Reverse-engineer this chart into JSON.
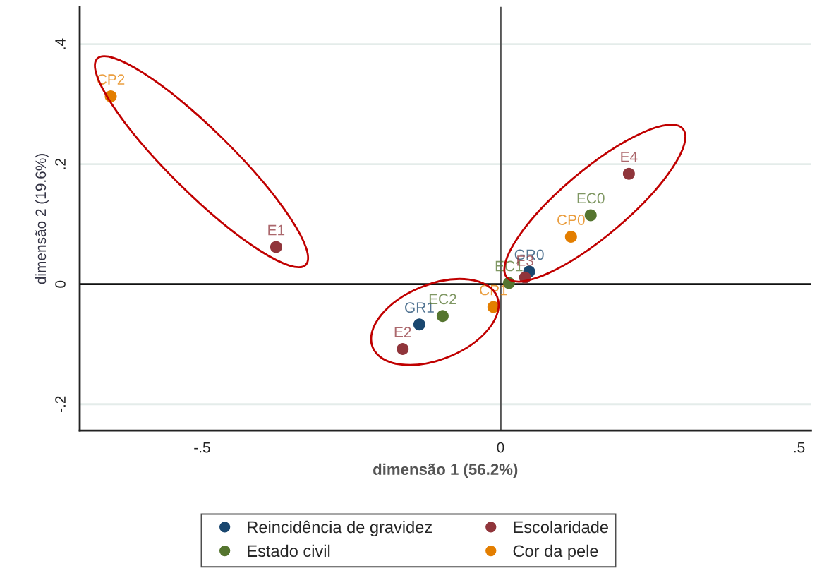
{
  "chart_data": {
    "type": "scatter",
    "xlabel": "dimensão 1 (56.2%)",
    "ylabel": "dimensão 2 (19.6%)",
    "xlim": [
      -0.705,
      0.52
    ],
    "ylim": [
      -0.244,
      0.462
    ],
    "xticks": [
      {
        "value": -0.5,
        "label": "-.5"
      },
      0,
      {
        "value": 0.5,
        "label": ".5"
      }
    ],
    "yticks": [
      {
        "value": -0.2,
        "label": "-.2"
      },
      0,
      {
        "value": 0.2,
        "label": ".2"
      },
      {
        "value": 0.4,
        "label": ".4"
      }
    ],
    "grid": "y",
    "legend": "bottom",
    "marker": "circle",
    "ref_lines": [
      {
        "axis": "x",
        "value": 0,
        "color": "#555555"
      },
      {
        "axis": "y",
        "value": 0,
        "color": "#111111"
      }
    ],
    "series": [
      {
        "name": "Reincidência de gravidez",
        "color": "#1a476f",
        "x": [
          0.048,
          -0.136
        ],
        "values": [
          0.021,
          -0.067
        ]
      },
      {
        "name": "Estado civil",
        "color": "#55752f",
        "x": [
          0.151,
          0.014,
          -0.097
        ],
        "values": [
          0.115,
          0.002,
          -0.053
        ]
      },
      {
        "name": "Escolaridade",
        "color": "#90353b",
        "x": [
          -0.376,
          -0.164,
          0.041,
          0.215
        ],
        "values": [
          0.062,
          -0.108,
          0.011,
          0.184
        ]
      },
      {
        "name": "Cor da pele",
        "color": "#e37e00",
        "x": [
          0.118,
          -0.012,
          -0.653
        ],
        "values": [
          0.079,
          -0.038,
          0.313
        ]
      }
    ],
    "annotations": [
      {
        "text": "GR0",
        "x": 0.048,
        "y": 0.021
      },
      {
        "text": "GR1",
        "x": -0.136,
        "y": -0.067
      },
      {
        "text": "EC0",
        "x": 0.151,
        "y": 0.115
      },
      {
        "text": "EC1",
        "x": 0.014,
        "y": 0.002
      },
      {
        "text": "EC2",
        "x": -0.097,
        "y": -0.053
      },
      {
        "text": "E1",
        "x": -0.376,
        "y": 0.062
      },
      {
        "text": "E2",
        "x": -0.164,
        "y": -0.108
      },
      {
        "text": "E3",
        "x": 0.041,
        "y": 0.011
      },
      {
        "text": "E4",
        "x": 0.215,
        "y": 0.184
      },
      {
        "text": "CP0",
        "x": 0.118,
        "y": 0.079
      },
      {
        "text": "CP1",
        "x": -0.012,
        "y": -0.038
      },
      {
        "text": "CP2",
        "x": -0.653,
        "y": 0.313
      }
    ]
  }
}
